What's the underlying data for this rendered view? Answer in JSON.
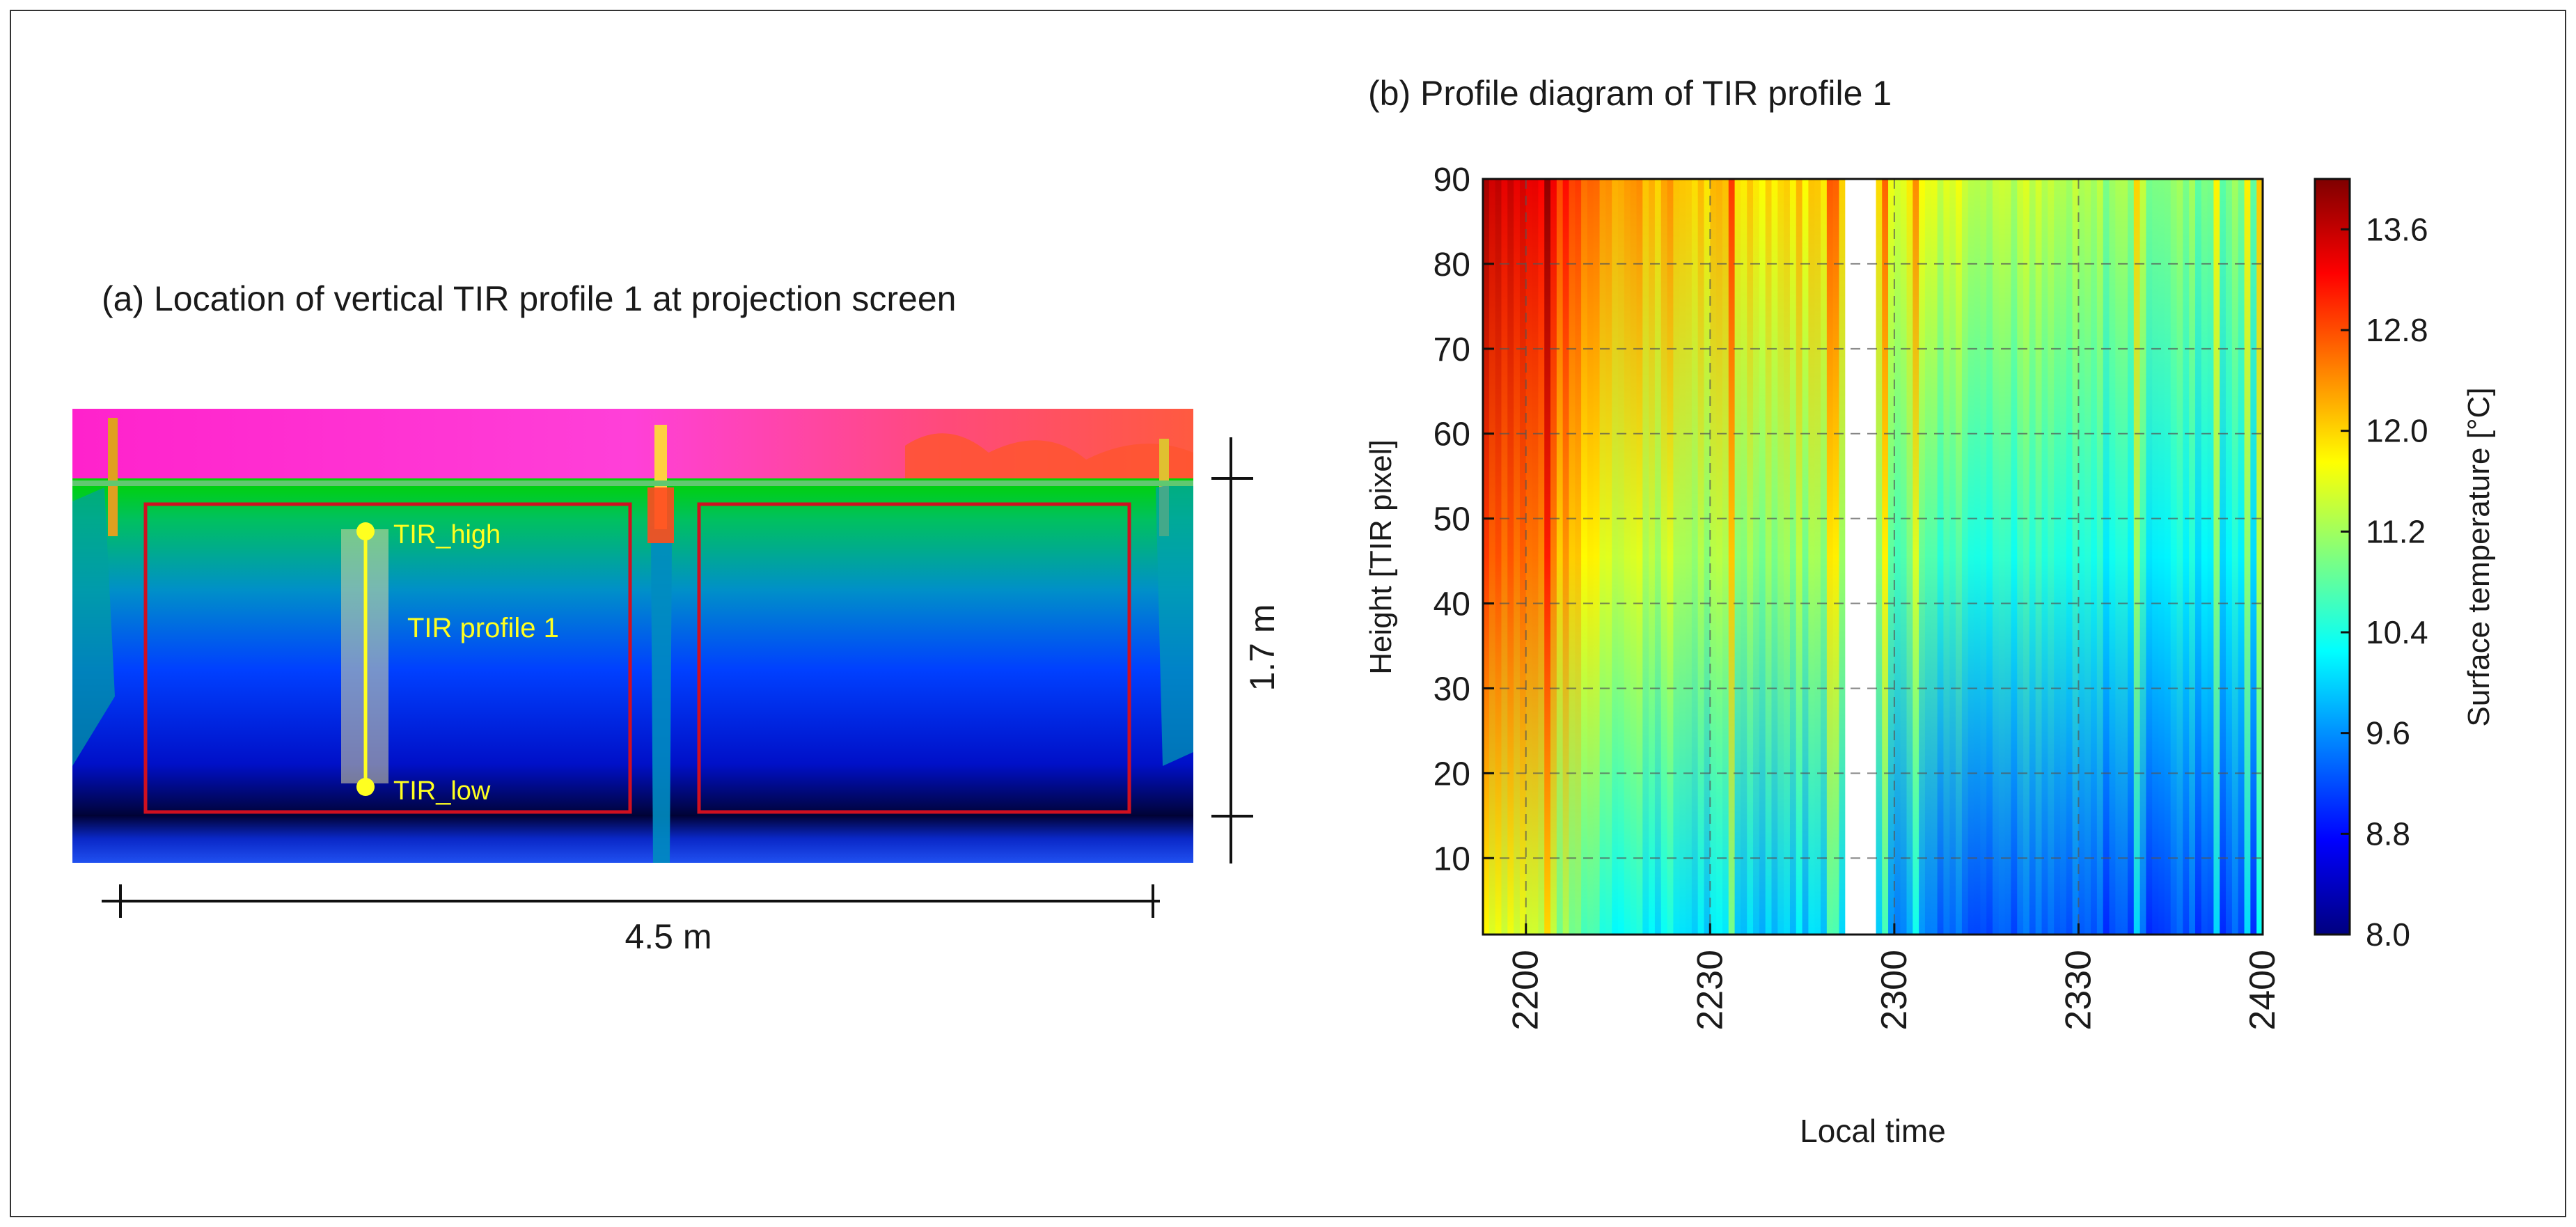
{
  "panel_a": {
    "title": "(a) Location of vertical TIR profile 1 at projection screen",
    "labels": {
      "high": "TIR_high",
      "profile": "TIR profile 1",
      "low": "TIR_low"
    },
    "dimensions": {
      "height": "1.7 m",
      "width": "4.5 m"
    }
  },
  "panel_b": {
    "title": "(b) Profile diagram of TIR profile 1"
  },
  "chart_data": {
    "type": "heatmap",
    "title": "(b) Profile diagram of TIR profile 1",
    "xlabel": "Local time",
    "ylabel": "Height  [TIR pixel]",
    "x_ticks": [
      "2200",
      "2230",
      "2300",
      "2330",
      "2400"
    ],
    "y_ticks": [
      10,
      20,
      30,
      40,
      50,
      60,
      70,
      80,
      90
    ],
    "ylim": [
      1,
      90
    ],
    "x_range_minutes": [
      -7,
      120
    ],
    "x_tick_minutes": [
      0,
      30,
      60,
      90,
      120
    ],
    "data_gap_minutes": [
      52,
      57
    ],
    "colorbar": {
      "label": "Surface temperature [°C]",
      "range": [
        8.0,
        14.0
      ],
      "ticks": [
        "13.6",
        "12.8",
        "12.0",
        "11.2",
        "10.4",
        "9.6",
        "8.8",
        "8.0"
      ],
      "tick_values": [
        13.6,
        12.8,
        12.0,
        11.2,
        10.4,
        9.6,
        8.8,
        8.0
      ]
    },
    "profile_temperature_estimates": {
      "time_minutes": [
        -7,
        0,
        15,
        30,
        45,
        52,
        57,
        70,
        90,
        100,
        110,
        120
      ],
      "bottom_celsius": [
        11.8,
        11.5,
        10.4,
        10.0,
        10.0,
        null,
        9.8,
        9.4,
        9.2,
        9.2,
        9.2,
        9.2
      ],
      "top_celsius": [
        13.8,
        13.4,
        12.4,
        12.0,
        12.0,
        null,
        11.8,
        11.6,
        11.2,
        11.2,
        11.0,
        11.0
      ]
    }
  }
}
